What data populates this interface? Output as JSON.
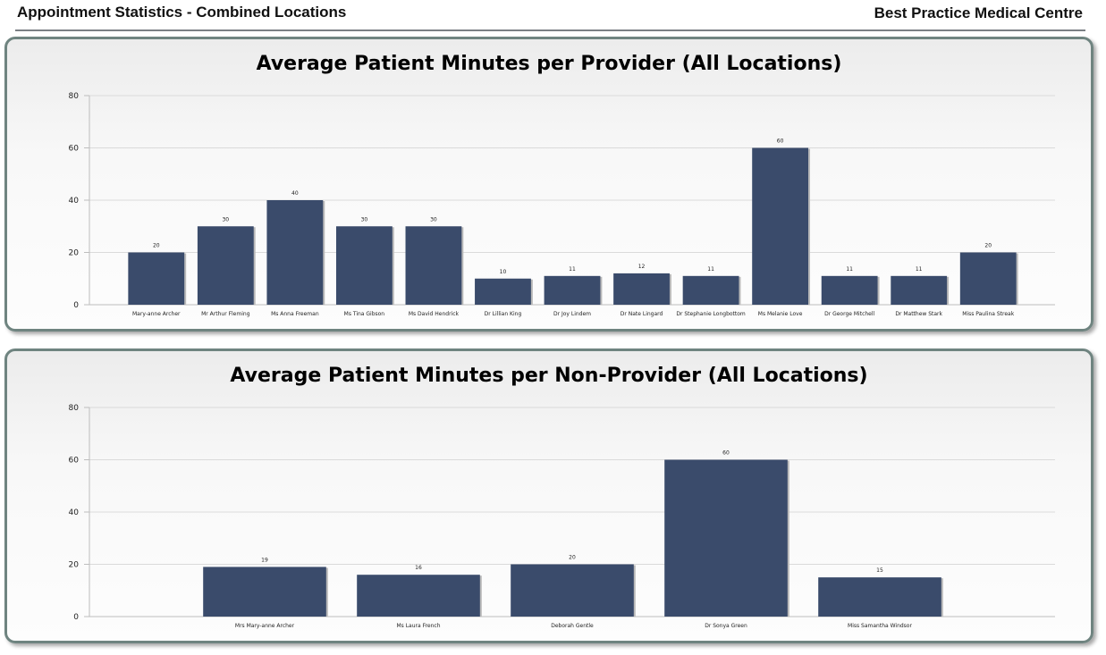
{
  "header": {
    "left_title": "Appointment Statistics - Combined Locations",
    "right_title": "Best Practice Medical Centre"
  },
  "colors": {
    "bar": "#3a4b6b",
    "grid": "#dadada",
    "axis": "#bdbdbd"
  },
  "chart_data": [
    {
      "type": "bar",
      "title": "Average Patient Minutes per Provider (All Locations)",
      "categories": [
        "Mary-anne Archer",
        "Mr Arthur Fleming",
        "Ms Anna Freeman",
        "Ms Tina Gibson",
        "Ms David Hendrick",
        "Dr Lillian King",
        "Dr Joy Lindem",
        "Dr Nate Lingard",
        "Dr Stephanie Longbottom",
        "Ms Melanie Love",
        "Dr George Mitchell",
        "Dr Matthew Stark",
        "Miss Paulina Streak"
      ],
      "values": [
        20,
        30,
        40,
        30,
        30,
        10,
        11,
        12,
        11,
        60,
        11,
        11,
        20
      ],
      "yticks": [
        0,
        20,
        40,
        60,
        80
      ],
      "ylim": [
        0,
        80
      ],
      "grid": true
    },
    {
      "type": "bar",
      "title": "Average Patient Minutes per Non-Provider (All Locations)",
      "categories": [
        "Mrs Mary-anne Archer",
        "Ms Laura French",
        "Deborah Gentle",
        "Dr Sonya Green",
        "Miss Samantha Windsor"
      ],
      "values": [
        19,
        16,
        20,
        60,
        15
      ],
      "yticks": [
        0,
        20,
        40,
        60,
        80
      ],
      "ylim": [
        0,
        80
      ],
      "grid": true
    }
  ]
}
